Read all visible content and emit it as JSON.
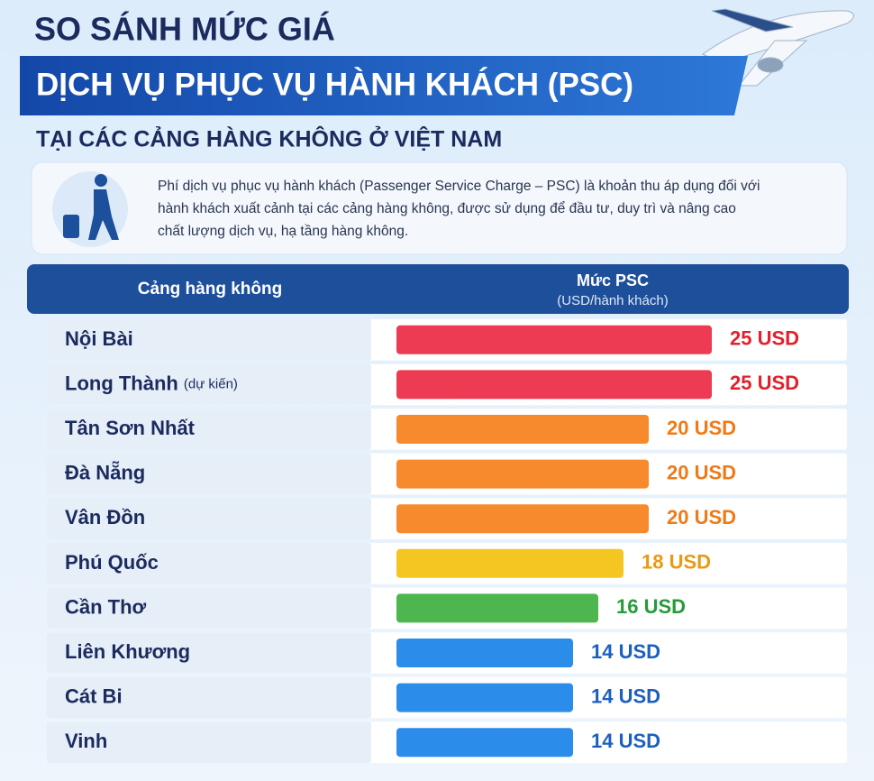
{
  "header": {
    "title_line1": "SO SÁNH MỨC GIÁ",
    "title_line2": "DỊCH VỤ PHỤC VỤ HÀNH KHÁCH (PSC)",
    "title_line3": "TẠI CÁC CẢNG HÀNG KHÔNG Ở VIỆT NAM"
  },
  "description": "Phí dịch vụ phục vụ hành khách (Passenger Service Charge – PSC) là khoản thu áp dụng đối với hành khách xuất cảnh tại các cảng hàng không, được sử dụng để đầu tư, duy trì và nâng cao chất lượng dịch vụ, hạ tầng hàng không.",
  "chart_data": {
    "type": "bar",
    "orientation": "horizontal",
    "column_header_category": "Cảng hàng không",
    "column_header_value": "Mức PSC",
    "column_header_unit": "(USD/hành khách)",
    "categories": [
      "Nội Bài",
      "Long Thành",
      "Tân Sơn Nhất",
      "Đà Nẵng",
      "Vân Đồn",
      "Phú Quốc",
      "Cần Thơ",
      "Liên Khương",
      "Cát Bi",
      "Vinh"
    ],
    "category_notes": [
      null,
      "(dự kiến)",
      null,
      null,
      null,
      null,
      null,
      null,
      null,
      null
    ],
    "values": [
      25,
      25,
      20,
      20,
      20,
      18,
      16,
      14,
      14,
      14
    ],
    "value_labels": [
      "25 USD",
      "25 USD",
      "20 USD",
      "20 USD",
      "20 USD",
      "18 USD",
      "16 USD",
      "14 USD",
      "14 USD",
      "14 USD"
    ],
    "colors": [
      "#ec3b52",
      "#ec3b52",
      "#f68a2c",
      "#f68a2c",
      "#f68a2c",
      "#f5c622",
      "#4db64f",
      "#2b8cea",
      "#2b8cea",
      "#2b8cea"
    ],
    "label_colors": [
      "#e3202c",
      "#e3202c",
      "#f07a16",
      "#f07a16",
      "#f07a16",
      "#e99a10",
      "#279a3a",
      "#1c5fc2",
      "#1c5fc2",
      "#1c5fc2"
    ]
  }
}
